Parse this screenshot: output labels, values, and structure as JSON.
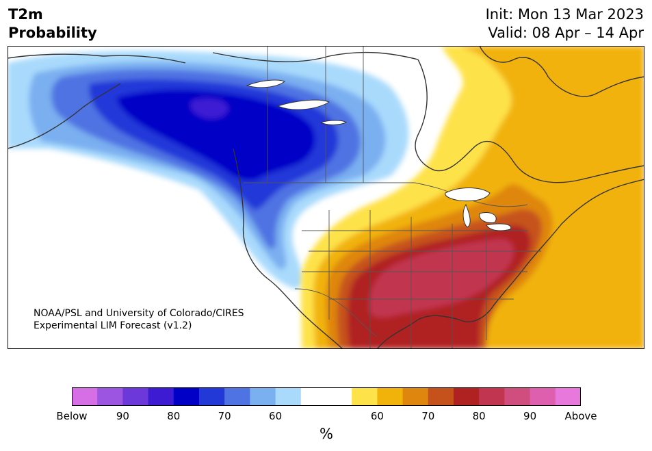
{
  "title": {
    "line1": "T2m",
    "line2": "Probability"
  },
  "header_right": {
    "init": "Init: Mon 13 Mar 2023",
    "valid": "Valid: 08 Apr – 14 Apr"
  },
  "credit": {
    "line1": "NOAA/PSL and University of Colorado/CIRES",
    "line2": "Experimental LIM Forecast (v1.2)"
  },
  "colorbar": {
    "colors": [
      "#d66fe6",
      "#9b55e0",
      "#6d38d9",
      "#3d1bd3",
      "#0000c6",
      "#2239d8",
      "#4f73e2",
      "#7aaff0",
      "#a9dafc",
      "#ffffff",
      "#ffffff",
      "#fee24a",
      "#f1b20a",
      "#df860f",
      "#c6521b",
      "#b02222",
      "#c23550",
      "#d04e7d",
      "#de5fad",
      "#e978dc"
    ],
    "tick_labels": [
      "Below",
      "90",
      "80",
      "70",
      "60",
      "60",
      "70",
      "80",
      "90",
      "Above"
    ],
    "unit": "%"
  },
  "map": {
    "region": "North America",
    "feature_colors": {
      "land": "#ffffff",
      "coast": "#333333",
      "lakes": "#ffffff"
    }
  }
}
